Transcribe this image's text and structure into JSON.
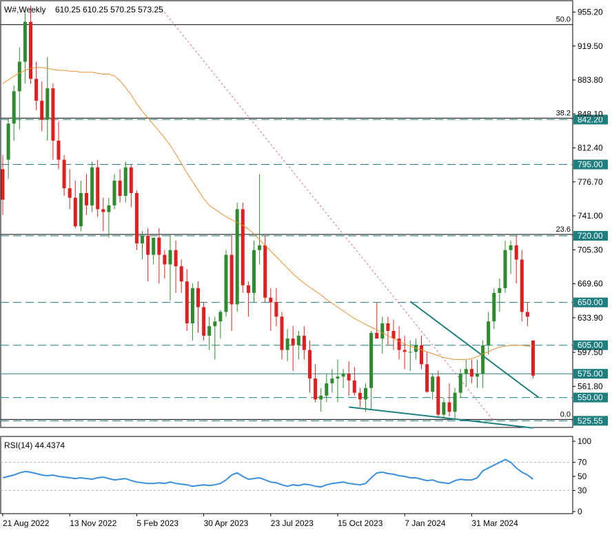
{
  "chart_data": [
    {
      "type": "candlestick",
      "symbol": "W#,Weekly",
      "ohlc_readout": "610.25 610.25 570.25 573.25",
      "ylim": [
        520,
        965
      ],
      "y_ticks": [
        "955.20",
        "919.50",
        "883.80",
        "848.10",
        "812.40",
        "776.70",
        "741.00",
        "705.30",
        "669.60",
        "633.90",
        "597.50",
        "561.80"
      ],
      "x_ticks": [
        {
          "label": "21 Aug 2022",
          "i": 0
        },
        {
          "label": "13 Nov 2022",
          "i": 12
        },
        {
          "label": "5 Feb 2023",
          "i": 24
        },
        {
          "label": "30 Apr 2023",
          "i": 36
        },
        {
          "label": "23 Jul 2023",
          "i": 48
        },
        {
          "label": "15 Oct 2023",
          "i": 60
        },
        {
          "label": "7 Jan 2024",
          "i": 72
        },
        {
          "label": "31 Mar 2024",
          "i": 84
        }
      ],
      "candles": [
        [
          790,
          805,
          742,
          758
        ],
        [
          800,
          843,
          780,
          838
        ],
        [
          838,
          878,
          820,
          872
        ],
        [
          872,
          918,
          832,
          903
        ],
        [
          903,
          958,
          880,
          945
        ],
        [
          945,
          962,
          880,
          885
        ],
        [
          885,
          903,
          852,
          862
        ],
        [
          862,
          882,
          830,
          842
        ],
        [
          842,
          908,
          820,
          875
        ],
        [
          875,
          880,
          800,
          820
        ],
        [
          820,
          840,
          790,
          800
        ],
        [
          800,
          805,
          762,
          770
        ],
        [
          770,
          790,
          748,
          760
        ],
        [
          760,
          778,
          728,
          730
        ],
        [
          730,
          778,
          725,
          765
        ],
        [
          765,
          785,
          742,
          752
        ],
        [
          752,
          798,
          745,
          792
        ],
        [
          792,
          800,
          740,
          748
        ],
        [
          748,
          760,
          725,
          745
        ],
        [
          745,
          760,
          718,
          752
        ],
        [
          752,
          785,
          748,
          778
        ],
        [
          778,
          790,
          755,
          762
        ],
        [
          762,
          798,
          755,
          792
        ],
        [
          792,
          795,
          750,
          765
        ],
        [
          765,
          768,
          705,
          712
        ],
        [
          712,
          725,
          695,
          720
        ],
        [
          720,
          728,
          672,
          700
        ],
        [
          700,
          718,
          690,
          718
        ],
        [
          718,
          728,
          670,
          700
        ],
        [
          700,
          705,
          675,
          690
        ],
        [
          690,
          722,
          652,
          705
        ],
        [
          705,
          715,
          660,
          688
        ],
        [
          688,
          695,
          660,
          672
        ],
        [
          672,
          685,
          620,
          628
        ],
        [
          628,
          670,
          610,
          665
        ],
        [
          665,
          672,
          618,
          645
        ],
        [
          645,
          650,
          610,
          615
        ],
        [
          615,
          635,
          600,
          625
        ],
        [
          625,
          635,
          590,
          630
        ],
        [
          630,
          642,
          612,
          640
        ],
        [
          640,
          705,
          635,
          700
        ],
        [
          700,
          720,
          620,
          648
        ],
        [
          648,
          755,
          640,
          748
        ],
        [
          748,
          755,
          660,
          668
        ],
        [
          668,
          672,
          635,
          660
        ],
        [
          660,
          715,
          650,
          705
        ],
        [
          705,
          785,
          690,
          710
        ],
        [
          710,
          720,
          650,
          655
        ],
        [
          655,
          665,
          620,
          650
        ],
        [
          650,
          665,
          625,
          635
        ],
        [
          635,
          640,
          590,
          600
        ],
        [
          600,
          622,
          588,
          612
        ],
        [
          612,
          625,
          578,
          605
        ],
        [
          605,
          620,
          590,
          615
        ],
        [
          615,
          625,
          590,
          600
        ],
        [
          600,
          610,
          555,
          570
        ],
        [
          570,
          585,
          545,
          548
        ],
        [
          548,
          560,
          535,
          552
        ],
        [
          552,
          575,
          545,
          565
        ],
        [
          565,
          580,
          555,
          570
        ],
        [
          570,
          590,
          545,
          572
        ],
        [
          572,
          580,
          560,
          575
        ],
        [
          575,
          588,
          552,
          568
        ],
        [
          568,
          582,
          552,
          555
        ],
        [
          555,
          560,
          540,
          548
        ],
        [
          548,
          565,
          535,
          560
        ],
        [
          560,
          620,
          538,
          618
        ],
        [
          618,
          650,
          612,
          612
        ],
        [
          612,
          635,
          596,
          628
        ],
        [
          628,
          635,
          605,
          620
        ],
        [
          620,
          632,
          600,
          612
        ],
        [
          612,
          625,
          590,
          600
        ],
        [
          600,
          615,
          580,
          598
        ],
        [
          598,
          610,
          578,
          598
        ],
        [
          598,
          612,
          590,
          605
        ],
        [
          605,
          615,
          580,
          585
        ],
        [
          585,
          598,
          555,
          556
        ],
        [
          556,
          575,
          548,
          572
        ],
        [
          572,
          578,
          530,
          532
        ],
        [
          532,
          550,
          528,
          545
        ],
        [
          545,
          565,
          530,
          535
        ],
        [
          535,
          560,
          528,
          555
        ],
        [
          555,
          580,
          550,
          575
        ],
        [
          575,
          590,
          562,
          580
        ],
        [
          580,
          590,
          565,
          572
        ],
        [
          572,
          590,
          560,
          575
        ],
        [
          575,
          610,
          560,
          605
        ],
        [
          605,
          640,
          595,
          630
        ],
        [
          630,
          665,
          622,
          660
        ],
        [
          660,
          675,
          640,
          665
        ],
        [
          665,
          715,
          660,
          705
        ],
        [
          705,
          715,
          680,
          710
        ],
        [
          710,
          720,
          670,
          695
        ],
        [
          695,
          705,
          630,
          640
        ],
        [
          640,
          650,
          625,
          635
        ],
        [
          610,
          610,
          570,
          573
        ]
      ],
      "sma": [
        880,
        884,
        888,
        891,
        894,
        896,
        897,
        897,
        896,
        895,
        894,
        894,
        893,
        893,
        892,
        892,
        892,
        891,
        890,
        890,
        888,
        883,
        876,
        868,
        859,
        851,
        844,
        837,
        830,
        823,
        815,
        806,
        796,
        786,
        777,
        768,
        759,
        752,
        748,
        744,
        740,
        737,
        734,
        731,
        727,
        722,
        716,
        710,
        704,
        698,
        692,
        686,
        680,
        675,
        670,
        666,
        662,
        658,
        653,
        649,
        645,
        641,
        637,
        633,
        630,
        627,
        624,
        621,
        618,
        615,
        612,
        609,
        606,
        604,
        602,
        600,
        598,
        596,
        594,
        592,
        591,
        590,
        590,
        590,
        591,
        593,
        596,
        598,
        601,
        603,
        604,
        605,
        605,
        605,
        604,
        604
      ],
      "horizontal_levels": [
        {
          "value": 842.2,
          "label": "842.20",
          "fib": "38.2",
          "style": "dashed",
          "color": "#1f7f7f"
        },
        {
          "value": 795.0,
          "label": "795.00",
          "style": "dashed",
          "color": "#1f7f7f"
        },
        {
          "value": 720.0,
          "label": "720.00",
          "fib": "23.6",
          "style": "dashed",
          "color": "#1f7f7f"
        },
        {
          "value": 650.0,
          "label": "650.00",
          "style": "dashed",
          "color": "#1f7f7f"
        },
        {
          "value": 605.0,
          "label": "605.00",
          "style": "dashed",
          "color": "#1f7f7f"
        },
        {
          "value": 575.0,
          "label": "575.00",
          "style": "solid",
          "color": "#1f7f7f"
        },
        {
          "value": 550.0,
          "label": "550.00",
          "style": "dashed",
          "color": "#1f7f7f"
        },
        {
          "value": 525.55,
          "label": "525.55",
          "fib": "0.0",
          "style": "dashed",
          "color": "#1f7f7f"
        }
      ],
      "fib_top": {
        "value": 942,
        "label": "50.0"
      },
      "trendlines": [
        {
          "from": [
            73,
            651
          ],
          "to": [
            96,
            550
          ],
          "color": "#1f7f7f"
        },
        {
          "from": [
            62,
            540
          ],
          "to": [
            95,
            518
          ],
          "color": "#1f7f7f"
        },
        {
          "from": [
            28,
            962
          ],
          "to": [
            88,
            525
          ],
          "color": "#d070a0",
          "style": "dotted"
        }
      ],
      "colors": {
        "up": "#2e8b2e",
        "down": "#e02020",
        "sma": "#e89030",
        "level": "#1f7f7f",
        "label_bg": "#1f7f7f",
        "label_text": "#ffffff"
      }
    },
    {
      "type": "line",
      "title": "RSI(14) 44.4374",
      "ylim": [
        0,
        100
      ],
      "y_ticks": [
        "100",
        "70",
        "50",
        "30",
        "0"
      ],
      "levels": [
        70,
        30
      ],
      "values": [
        48,
        50,
        52,
        55,
        57,
        56,
        54,
        52,
        51,
        52,
        50,
        49,
        48,
        47,
        48,
        47,
        46,
        48,
        49,
        47,
        45,
        46,
        47,
        44,
        42,
        41,
        40,
        40,
        41,
        40,
        42,
        40,
        39,
        38,
        36,
        37,
        38,
        37,
        38,
        40,
        45,
        52,
        55,
        50,
        46,
        47,
        48,
        45,
        42,
        41,
        38,
        36,
        38,
        37,
        39,
        38,
        36,
        35,
        38,
        40,
        41,
        42,
        40,
        39,
        38,
        40,
        48,
        55,
        56,
        54,
        53,
        51,
        50,
        48,
        48,
        46,
        44,
        45,
        42,
        41,
        40,
        44,
        46,
        45,
        45,
        48,
        58,
        62,
        66,
        70,
        74,
        70,
        62,
        56,
        52,
        46
      ],
      "line_color": "#3a8ee0"
    }
  ]
}
